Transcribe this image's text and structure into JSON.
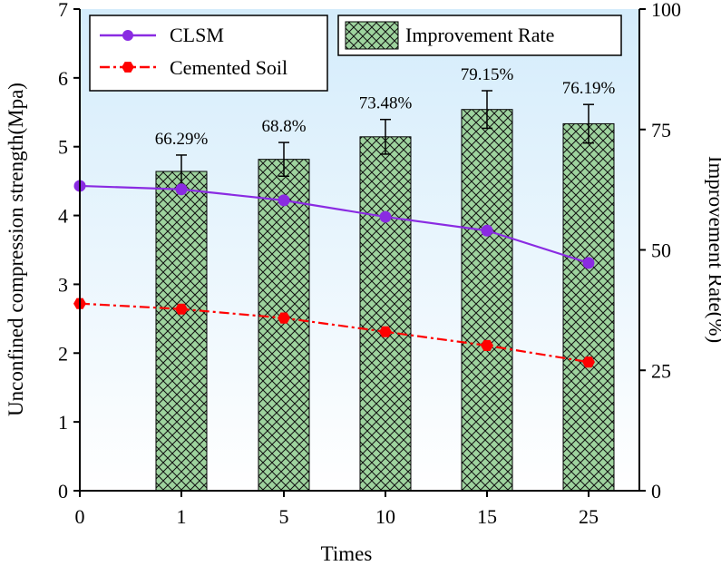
{
  "chart_data": {
    "type": "bar",
    "categories": [
      "0",
      "1",
      "5",
      "10",
      "15",
      "25"
    ],
    "xlabel": "Times",
    "ylabel": "Unconfined compression strength(Mpa)",
    "y2label": "Improvement Rate(%)",
    "ylim": [
      0,
      7
    ],
    "y2lim": [
      0,
      100
    ],
    "yticks": [
      "0",
      "1",
      "2",
      "3",
      "4",
      "5",
      "6",
      "7"
    ],
    "y2ticks": [
      "0",
      "25",
      "50",
      "75",
      "100"
    ],
    "bar_series": {
      "name": "Improvement Rate",
      "axis": "right",
      "values": [
        null,
        66.29,
        68.8,
        73.48,
        79.15,
        76.19
      ],
      "error": [
        null,
        3.4,
        3.5,
        3.6,
        3.9,
        4.0
      ],
      "labels": [
        "",
        "66.29%",
        "68.8%",
        "73.48%",
        "79.15%",
        "76.19%"
      ],
      "fill_color": "#9ed39e",
      "hatch": "cross"
    },
    "line_series": [
      {
        "name": "CLSM",
        "axis": "left",
        "values": [
          4.43,
          4.38,
          4.22,
          3.98,
          3.78,
          3.31
        ],
        "color": "#8a2be2",
        "style": "solid",
        "marker": "circle"
      },
      {
        "name": "Cemented Soil",
        "axis": "left",
        "values": [
          2.72,
          2.64,
          2.51,
          2.31,
          2.11,
          1.87
        ],
        "color": "#ff0000",
        "style": "dash-dot",
        "marker": "hexagon"
      }
    ],
    "legend": [
      "CLSM",
      "Cemented Soil",
      "Improvement Rate"
    ],
    "legend_position": "top",
    "background": "gradient-light-blue"
  }
}
